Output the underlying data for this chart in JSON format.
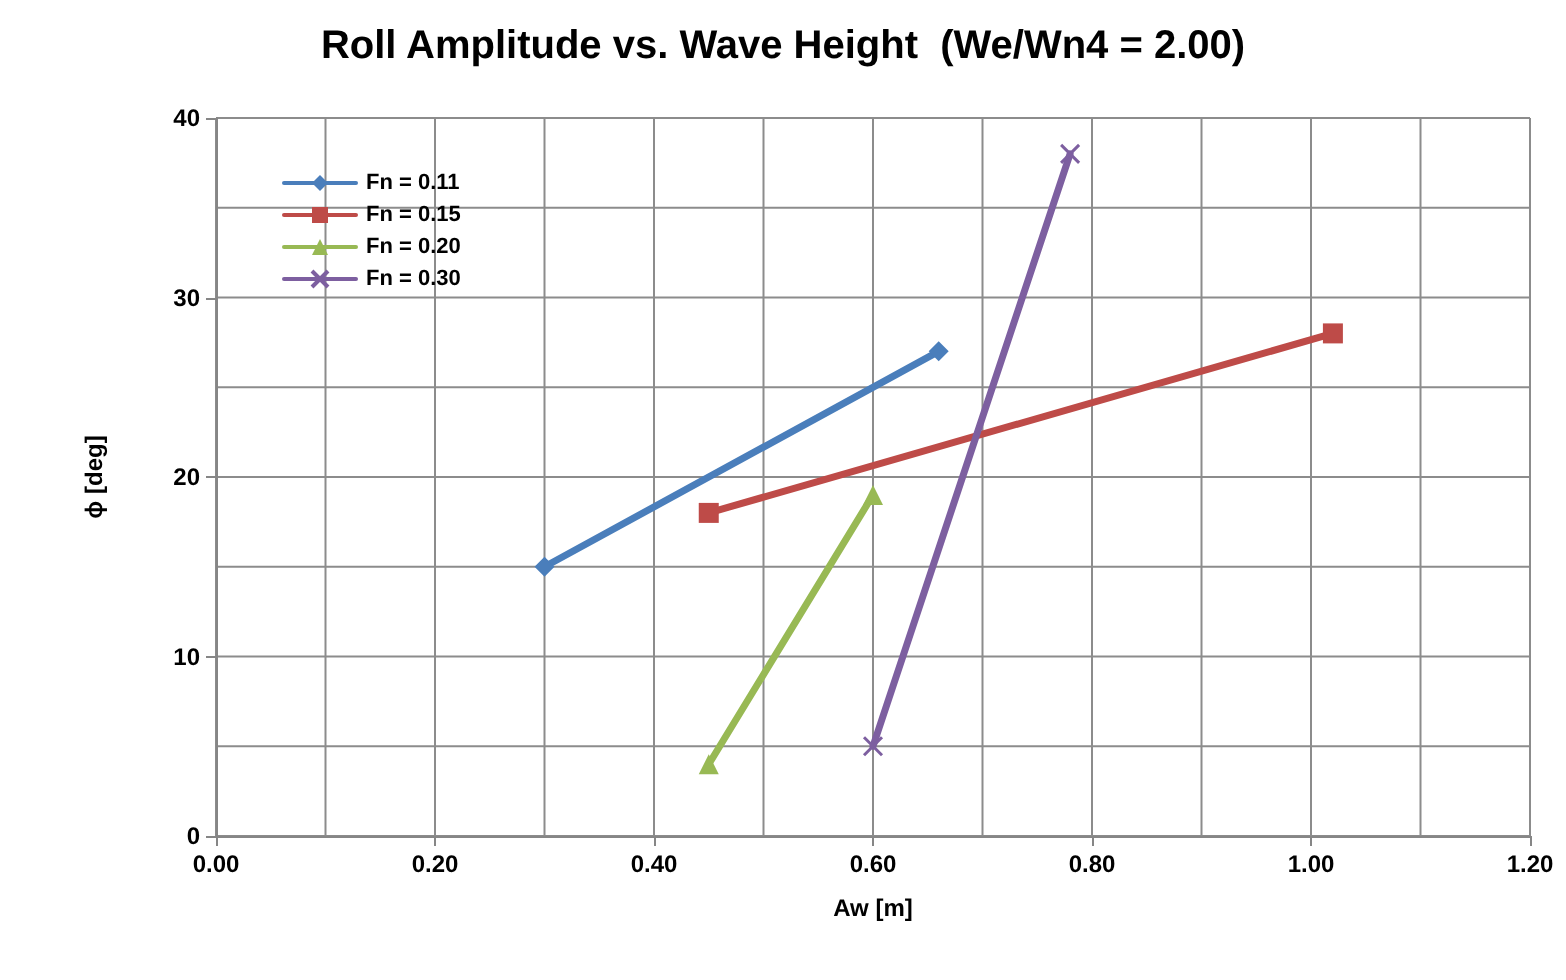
{
  "chart_data": {
    "type": "line",
    "title": "Roll Amplitude vs. Wave Height  (We/Wn4 = 2.00)",
    "xlabel": "Aw [m]",
    "ylabel": "ϕ [deg]",
    "series": [
      {
        "name": "Fn = 0.11",
        "color": "#4a7ebb",
        "marker": "diamond",
        "x": [
          0.3,
          0.66
        ],
        "values": [
          15,
          27
        ]
      },
      {
        "name": "Fn = 0.15",
        "color": "#be4b48",
        "marker": "square",
        "x": [
          0.45,
          1.02
        ],
        "values": [
          18,
          28
        ]
      },
      {
        "name": "Fn = 0.20",
        "color": "#98b954",
        "marker": "triangle",
        "x": [
          0.45,
          0.6
        ],
        "values": [
          4,
          19
        ]
      },
      {
        "name": "Fn = 0.30",
        "color": "#7d5fa0",
        "marker": "cross",
        "x": [
          0.6,
          0.78
        ],
        "values": [
          5,
          38
        ]
      }
    ],
    "xlim": [
      0,
      1.2
    ],
    "xticks": [
      {
        "value": 0,
        "label": "0.00"
      },
      {
        "value": 0.1,
        "label": null
      },
      {
        "value": 0.2,
        "label": "0.20"
      },
      {
        "value": 0.3,
        "label": null
      },
      {
        "value": 0.4,
        "label": "0.40"
      },
      {
        "value": 0.5,
        "label": null
      },
      {
        "value": 0.6,
        "label": "0.60"
      },
      {
        "value": 0.7,
        "label": null
      },
      {
        "value": 0.8,
        "label": "0.80"
      },
      {
        "value": 0.9,
        "label": null
      },
      {
        "value": 1.0,
        "label": "1.00"
      },
      {
        "value": 1.1,
        "label": null
      },
      {
        "value": 1.2,
        "label": "1.20"
      }
    ],
    "ylim": [
      0,
      40
    ],
    "yticks": [
      0,
      {
        "value": 5,
        "label": null
      },
      10,
      {
        "value": 15,
        "label": null
      },
      20,
      {
        "value": 25,
        "label": null
      },
      30,
      {
        "value": 35,
        "label": null
      },
      40
    ],
    "grid": true,
    "legend": "top left",
    "line_style": "solid"
  }
}
